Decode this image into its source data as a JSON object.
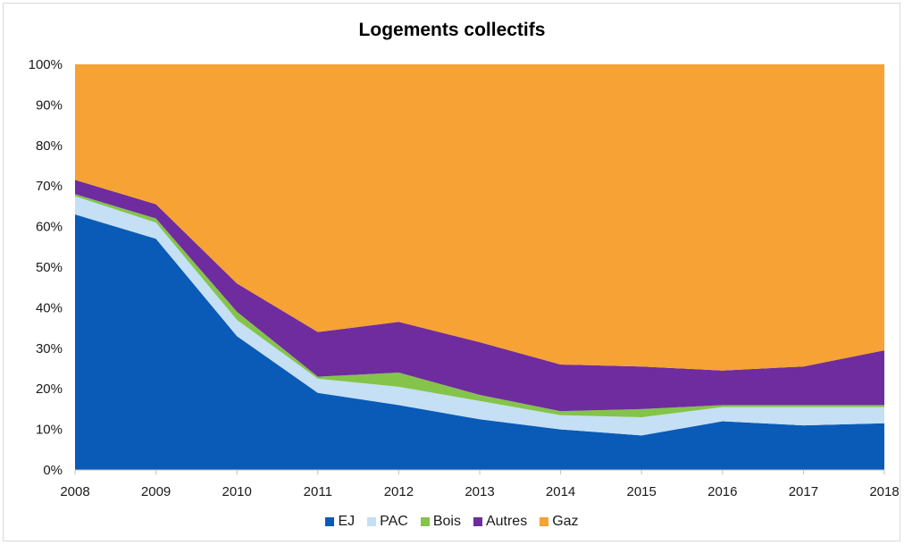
{
  "chart_data": {
    "type": "area",
    "stacked": true,
    "percent": true,
    "title": "Logements collectifs",
    "xlabel": "",
    "ylabel": "",
    "x": [
      "2008",
      "2009",
      "2010",
      "2011",
      "2012",
      "2013",
      "2014",
      "2015",
      "2016",
      "2017",
      "2018"
    ],
    "ylim": [
      0,
      100
    ],
    "y_ticks": [
      "0%",
      "10%",
      "20%",
      "30%",
      "40%",
      "50%",
      "60%",
      "70%",
      "80%",
      "90%",
      "100%"
    ],
    "grid": false,
    "legend_position": "bottom",
    "series": [
      {
        "name": "EJ",
        "color": "#0a5bb8",
        "values": [
          63,
          57,
          33,
          19,
          16,
          12.5,
          10,
          8.5,
          12,
          11,
          11.5
        ]
      },
      {
        "name": "PAC",
        "color": "#c5dff5",
        "values": [
          4.5,
          4,
          4,
          3.5,
          4.5,
          4.5,
          3.5,
          4.5,
          3.5,
          4.5,
          4
        ]
      },
      {
        "name": "Bois",
        "color": "#84c44a",
        "values": [
          0.5,
          1,
          2,
          0.5,
          3.5,
          1.5,
          1,
          2,
          0.5,
          0.5,
          0.5
        ]
      },
      {
        "name": "Autres",
        "color": "#6f2c9e",
        "values": [
          3.5,
          3.5,
          7,
          11,
          12.5,
          13,
          11.5,
          10.5,
          8.5,
          9.5,
          13.5
        ]
      },
      {
        "name": "Gaz",
        "color": "#f6a234",
        "values": [
          28.5,
          34.5,
          54,
          66,
          63.5,
          68.5,
          74,
          74.5,
          75.5,
          74.5,
          70.5
        ]
      }
    ]
  }
}
